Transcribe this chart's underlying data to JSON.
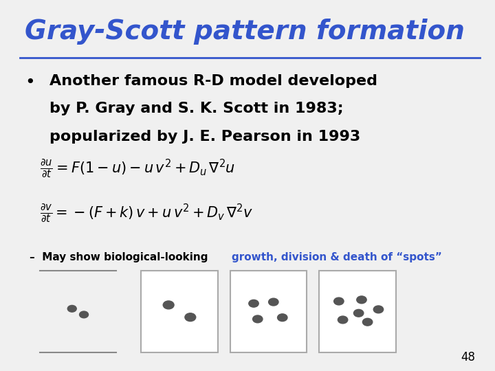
{
  "title": "Gray-Scott pattern formation",
  "title_color": "#3355cc",
  "title_fontsize": 28,
  "slide_bg": "#f0f0f0",
  "bullet_text_line1": "Another famous R-D model developed",
  "bullet_text_line2": "by P. Gray and S. K. Scott in 1983;",
  "bullet_text_line3": "popularized by J. E. Pearson in 1993",
  "sub_text_black": "–  May show biological-looking ",
  "sub_text_blue": "growth, division & death of “spots”",
  "page_number": "48",
  "box_border_color": "#aaaaaa",
  "spot_color": "#555555",
  "bullet_fontsize": 16,
  "eq_fontsize": 15,
  "sub_fontsize": 11
}
